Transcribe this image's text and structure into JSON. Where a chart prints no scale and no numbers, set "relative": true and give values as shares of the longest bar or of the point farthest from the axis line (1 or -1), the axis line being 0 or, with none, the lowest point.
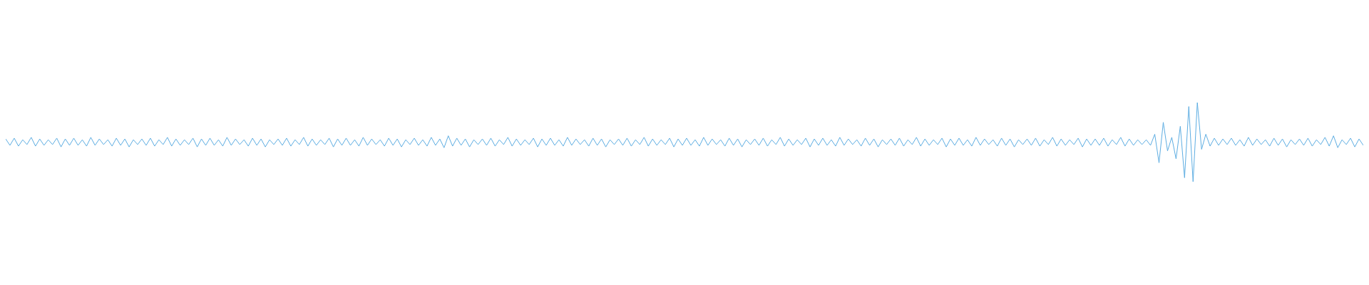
{
  "chart_data": {
    "type": "line",
    "relative": true,
    "color": "#5dade2",
    "categories": [
      null,
      null,
      null,
      null,
      null,
      null,
      null,
      null,
      null,
      null,
      null,
      null,
      null,
      null,
      null,
      null,
      null,
      null,
      null,
      null,
      null,
      null,
      null,
      null,
      null,
      null,
      null,
      null,
      null,
      null,
      null,
      null,
      null,
      null,
      null,
      null,
      null,
      null,
      null,
      null,
      null,
      null,
      null,
      null,
      null,
      null,
      null,
      null,
      null,
      null,
      null,
      null,
      null,
      null,
      null,
      null,
      null,
      null,
      null,
      null,
      null,
      null,
      null,
      null,
      null,
      null,
      null,
      null,
      null,
      null,
      null,
      null,
      null,
      null,
      null,
      null,
      null,
      null,
      null,
      null,
      null,
      null,
      null,
      null,
      null,
      null,
      null,
      null,
      null,
      null,
      null,
      null,
      null,
      null,
      null,
      null,
      null,
      null,
      null,
      null,
      null,
      null,
      null,
      null,
      null,
      null,
      null,
      null,
      null,
      null,
      null,
      null,
      null,
      null,
      null,
      null,
      null,
      null,
      null,
      null,
      null,
      null,
      null,
      null,
      null,
      null,
      null,
      null,
      null,
      null,
      null,
      null,
      null,
      null,
      null,
      null,
      null,
      null,
      null,
      null,
      null,
      null,
      null,
      null,
      null,
      null,
      null,
      null,
      null,
      null,
      null,
      null,
      null,
      null,
      null,
      null,
      null,
      null,
      null,
      null,
      null,
      null,
      null,
      null,
      null,
      null,
      null,
      null,
      null,
      null,
      null,
      null,
      null,
      null,
      null,
      null,
      null,
      null,
      null,
      null,
      null,
      null,
      null,
      null,
      null,
      null,
      null,
      null,
      null,
      null,
      null,
      null,
      null,
      null,
      null,
      null,
      null,
      null,
      null,
      null,
      null,
      null,
      null,
      null,
      null,
      null,
      null,
      null,
      null,
      null,
      null,
      null,
      null,
      null,
      null,
      null,
      null,
      null,
      null,
      null,
      null,
      null,
      null,
      null,
      null,
      null,
      null,
      null,
      null,
      null,
      null,
      null,
      null,
      null,
      null,
      null,
      null,
      null,
      null,
      null,
      null,
      null,
      null,
      null,
      null,
      null,
      null,
      null,
      null,
      null,
      null,
      null,
      null,
      null,
      null,
      null,
      null,
      null,
      null,
      null,
      null,
      null,
      null,
      null,
      null,
      null,
      null,
      null,
      null,
      null,
      null,
      null,
      null,
      null,
      null,
      null,
      null,
      null,
      null,
      null,
      null,
      null,
      null,
      null,
      null,
      null,
      null,
      null,
      null,
      null,
      null,
      null,
      null,
      null,
      null,
      null,
      null,
      null,
      null,
      null,
      null,
      null,
      null,
      null,
      null,
      null,
      null,
      null,
      null,
      null,
      null,
      null,
      null,
      null,
      null,
      null,
      null,
      null,
      null,
      null
    ],
    "values": [
      0.54,
      0.46,
      0.55,
      0.45,
      0.53,
      0.47,
      0.56,
      0.45,
      0.54,
      0.46,
      0.53,
      0.47,
      0.55,
      0.44,
      0.54,
      0.46,
      0.55,
      0.46,
      0.53,
      0.45,
      0.56,
      0.46,
      0.54,
      0.47,
      0.53,
      0.45,
      0.55,
      0.46,
      0.54,
      0.44,
      0.53,
      0.47,
      0.54,
      0.46,
      0.55,
      0.45,
      0.53,
      0.47,
      0.56,
      0.45,
      0.54,
      0.46,
      0.53,
      0.47,
      0.55,
      0.44,
      0.54,
      0.46,
      0.55,
      0.46,
      0.53,
      0.45,
      0.56,
      0.46,
      0.54,
      0.47,
      0.53,
      0.45,
      0.55,
      0.46,
      0.54,
      0.44,
      0.53,
      0.47,
      0.54,
      0.46,
      0.55,
      0.45,
      0.53,
      0.47,
      0.56,
      0.45,
      0.54,
      0.46,
      0.53,
      0.47,
      0.55,
      0.44,
      0.54,
      0.46,
      0.55,
      0.46,
      0.53,
      0.45,
      0.56,
      0.46,
      0.54,
      0.47,
      0.53,
      0.45,
      0.55,
      0.46,
      0.54,
      0.44,
      0.53,
      0.47,
      0.55,
      0.46,
      0.53,
      0.45,
      0.56,
      0.46,
      0.54,
      0.43,
      0.58,
      0.45,
      0.55,
      0.46,
      0.54,
      0.44,
      0.53,
      0.47,
      0.54,
      0.46,
      0.55,
      0.45,
      0.53,
      0.47,
      0.56,
      0.45,
      0.54,
      0.46,
      0.53,
      0.47,
      0.55,
      0.44,
      0.54,
      0.46,
      0.55,
      0.46,
      0.53,
      0.45,
      0.56,
      0.46,
      0.54,
      0.47,
      0.53,
      0.45,
      0.55,
      0.46,
      0.54,
      0.44,
      0.53,
      0.47,
      0.54,
      0.46,
      0.55,
      0.45,
      0.53,
      0.47,
      0.56,
      0.45,
      0.54,
      0.46,
      0.53,
      0.47,
      0.55,
      0.44,
      0.54,
      0.46,
      0.55,
      0.46,
      0.53,
      0.45,
      0.56,
      0.46,
      0.54,
      0.47,
      0.53,
      0.45,
      0.55,
      0.46,
      0.54,
      0.44,
      0.53,
      0.47,
      0.54,
      0.46,
      0.55,
      0.45,
      0.53,
      0.47,
      0.56,
      0.45,
      0.54,
      0.46,
      0.53,
      0.47,
      0.55,
      0.44,
      0.54,
      0.46,
      0.55,
      0.46,
      0.53,
      0.45,
      0.56,
      0.46,
      0.54,
      0.47,
      0.53,
      0.45,
      0.55,
      0.46,
      0.54,
      0.44,
      0.53,
      0.47,
      0.54,
      0.46,
      0.55,
      0.45,
      0.53,
      0.47,
      0.56,
      0.45,
      0.54,
      0.46,
      0.53,
      0.47,
      0.55,
      0.44,
      0.54,
      0.46,
      0.55,
      0.46,
      0.53,
      0.45,
      0.56,
      0.46,
      0.54,
      0.47,
      0.53,
      0.45,
      0.55,
      0.46,
      0.54,
      0.44,
      0.53,
      0.47,
      0.54,
      0.46,
      0.55,
      0.45,
      0.53,
      0.47,
      0.56,
      0.45,
      0.54,
      0.46,
      0.53,
      0.47,
      0.55,
      0.44,
      0.54,
      0.46,
      0.54,
      0.46,
      0.55,
      0.45,
      0.53,
      0.47,
      0.56,
      0.45,
      0.54,
      0.46,
      0.53,
      0.47,
      0.53,
      0.46,
      0.6,
      0.24,
      0.75,
      0.39,
      0.56,
      0.29,
      0.7,
      0.05,
      0.95,
      0.0,
      1.0,
      0.41,
      0.6,
      0.45,
      0.55,
      0.46,
      0.54,
      0.47,
      0.55,
      0.46,
      0.53,
      0.45,
      0.56,
      0.46,
      0.54,
      0.47,
      0.53,
      0.45,
      0.55,
      0.46,
      0.54,
      0.44,
      0.53,
      0.47,
      0.54,
      0.46,
      0.55,
      0.45,
      0.53,
      0.47,
      0.56,
      0.45,
      0.58,
      0.43,
      0.53,
      0.47,
      0.55,
      0.44,
      0.54,
      0.46
    ]
  }
}
